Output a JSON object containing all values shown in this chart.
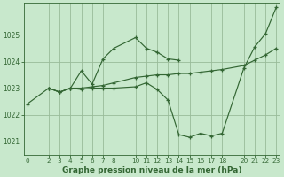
{
  "bg_color": "#c8e8cc",
  "grid_color": "#99bb99",
  "line_color": "#336633",
  "title": "Graphe pression niveau de la mer (hPa)",
  "ylim": [
    1020.5,
    1026.2
  ],
  "xlim": [
    -0.3,
    23.3
  ],
  "yticks": [
    1021,
    1022,
    1023,
    1024,
    1025
  ],
  "xticks": [
    0,
    2,
    3,
    4,
    5,
    6,
    7,
    8,
    10,
    11,
    12,
    13,
    14,
    15,
    16,
    17,
    18,
    20,
    21,
    22,
    23
  ],
  "series": [
    {
      "x": [
        0,
        2,
        3,
        4,
        5,
        6,
        7,
        8,
        10,
        11,
        12,
        13,
        14
      ],
      "y": [
        1022.4,
        1023.0,
        1022.85,
        1023.0,
        1023.65,
        1023.15,
        1024.1,
        1024.5,
        1024.9,
        1024.5,
        1024.35,
        1024.1,
        1024.05
      ]
    },
    {
      "x": [
        2,
        3,
        4,
        5,
        6,
        7,
        8,
        10,
        11,
        12,
        13,
        14,
        15,
        16,
        17,
        18,
        20,
        21,
        22,
        23
      ],
      "y": [
        1023.0,
        1022.85,
        1023.0,
        1022.95,
        1023.0,
        1023.0,
        1023.0,
        1023.05,
        1023.2,
        1022.95,
        1022.55,
        1021.25,
        1021.15,
        1021.3,
        1021.2,
        1021.3,
        1023.75,
        1024.55,
        1025.05,
        1026.05
      ]
    },
    {
      "x": [
        2,
        3,
        4,
        5,
        6,
        7,
        8,
        10,
        11,
        12,
        13,
        14,
        15,
        16,
        17,
        18,
        20,
        21,
        22,
        23
      ],
      "y": [
        1023.0,
        1022.85,
        1023.0,
        1023.0,
        1023.05,
        1023.1,
        1023.2,
        1023.4,
        1023.45,
        1023.5,
        1023.5,
        1023.55,
        1023.55,
        1023.6,
        1023.65,
        1023.7,
        1023.85,
        1024.05,
        1024.25,
        1024.5
      ]
    }
  ]
}
